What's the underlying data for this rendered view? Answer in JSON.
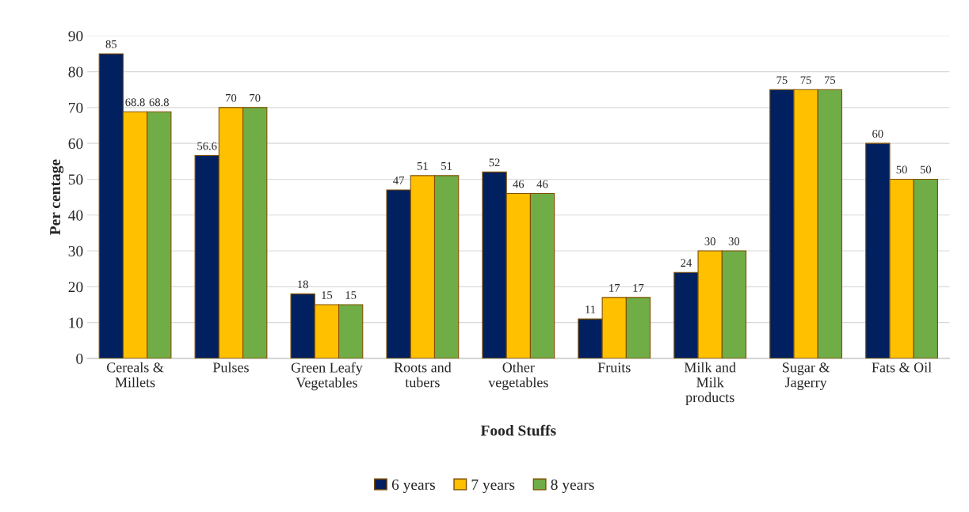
{
  "chart_data": {
    "type": "bar",
    "xlabel": "Food Stuffs",
    "ylabel": "Per centage",
    "categories": [
      "Cereals &\nMillets",
      "Pulses",
      "Green Leafy\nVegetables",
      "Roots and\ntubers",
      "Other\nvegetables",
      "Fruits",
      "Milk and\nMilk\nproducts",
      "Sugar &\nJagerry",
      "Fats & Oil"
    ],
    "series": [
      {
        "name": "6 years",
        "color": "#002060",
        "values": [
          85,
          56.6,
          18,
          47,
          52,
          11,
          24,
          75,
          60
        ]
      },
      {
        "name": "7 years",
        "color": "#ffc000",
        "values": [
          68.8,
          70,
          15,
          51,
          46,
          17,
          30,
          75,
          50
        ]
      },
      {
        "name": "8 years",
        "color": "#70ad47",
        "values": [
          68.8,
          70,
          15,
          51,
          46,
          17,
          30,
          75,
          50
        ]
      }
    ],
    "ylim": [
      0,
      90
    ],
    "yticks": [
      0,
      10,
      20,
      30,
      40,
      50,
      60,
      70,
      80,
      90
    ],
    "grid": "y",
    "legend": "bottom",
    "data_labels": true
  }
}
